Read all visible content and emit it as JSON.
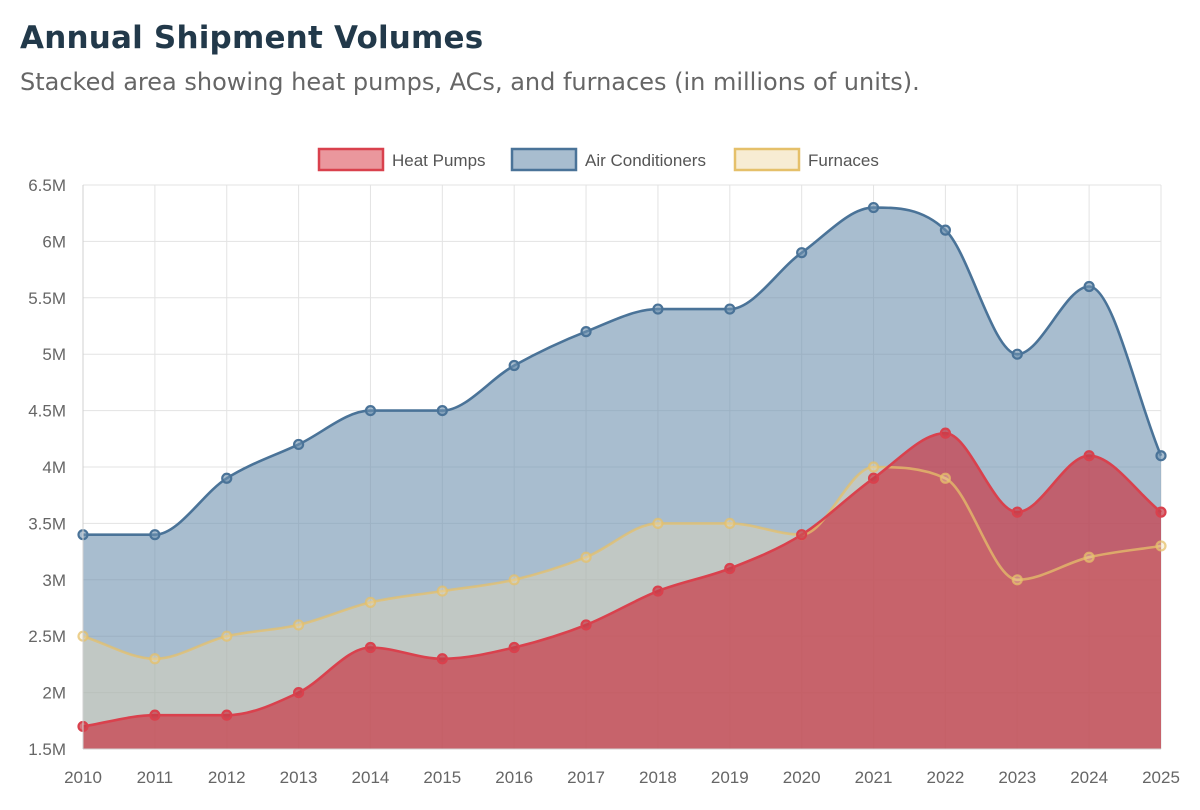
{
  "header": {
    "title": "Annual Shipment Volumes",
    "subtitle": "Stacked area showing heat pumps, ACs, and furnaces (in millions of units)."
  },
  "chart_data": {
    "type": "area",
    "x": [
      "2010",
      "2011",
      "2012",
      "2013",
      "2014",
      "2015",
      "2016",
      "2017",
      "2018",
      "2019",
      "2020",
      "2021",
      "2022",
      "2023",
      "2024",
      "2025"
    ],
    "ylim": [
      1.5,
      6.5
    ],
    "yticks": [
      1.5,
      2,
      2.5,
      3,
      3.5,
      4,
      4.5,
      5,
      5.5,
      6,
      6.5
    ],
    "ytick_labels": [
      "1.5M",
      "2M",
      "2.5M",
      "3M",
      "3.5M",
      "4M",
      "4.5M",
      "5M",
      "5.5M",
      "6M",
      "6.5M"
    ],
    "grid": true,
    "legend_position": "top",
    "series": [
      {
        "name": "Heat Pumps",
        "values": [
          1.7,
          1.8,
          1.8,
          2.0,
          2.4,
          2.3,
          2.4,
          2.6,
          2.9,
          3.1,
          3.4,
          3.9,
          4.3,
          3.6,
          4.1,
          3.6
        ],
        "line_color": "#d9414d",
        "fill_color": "rgba(201,60,72,0.72)"
      },
      {
        "name": "Air Conditioners",
        "values": [
          3.4,
          3.4,
          3.9,
          4.2,
          4.5,
          4.5,
          4.9,
          5.2,
          5.4,
          5.4,
          5.9,
          6.3,
          6.1,
          5.0,
          5.6,
          4.1
        ],
        "line_color": "#4a7398",
        "fill_color": "rgba(110,145,175,0.6)"
      },
      {
        "name": "Furnaces",
        "values": [
          2.5,
          2.3,
          2.5,
          2.6,
          2.8,
          2.9,
          3.0,
          3.2,
          3.5,
          3.5,
          3.4,
          4.0,
          3.9,
          3.0,
          3.2,
          3.3
        ],
        "line_color": "#e5c06a",
        "fill_color": "rgba(240,220,175,0.35)"
      }
    ]
  }
}
